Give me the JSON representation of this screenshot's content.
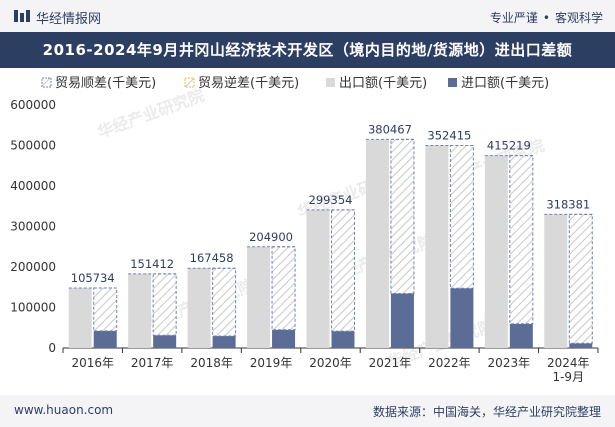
{
  "header": {
    "brand": "华经情报网",
    "slogan_left": "专业严谨",
    "slogan_sep": "•",
    "slogan_right": "客观科学"
  },
  "watermark": "华经产业研究院",
  "footer": {
    "site": "www.huaon.com",
    "source": "数据来源：中国海关，华经产业研究院整理"
  },
  "colors": {
    "header_bg": "#2d3e63",
    "export": "#d9d9d9",
    "import": "#5b6d96",
    "surplus_stroke": "#6d84b4",
    "deficit_stroke": "#f0c33c"
  },
  "chart_data": {
    "type": "bar",
    "title": "2016-2024年9月井冈山经济技术开发区（境内目的地/货源地）进出口差额",
    "categories": [
      "2016年",
      "2017年",
      "2018年",
      "2019年",
      "2020年",
      "2021年",
      "2022年",
      "2023年",
      "2024年\n1-9月"
    ],
    "series": [
      {
        "name": "贸易顺差(千美元)",
        "values": [
          105734,
          151412,
          167458,
          204900,
          299354,
          380467,
          352415,
          415219,
          318381
        ]
      },
      {
        "name": "贸易逆差(千美元)",
        "values": [
          0,
          0,
          0,
          0,
          0,
          0,
          0,
          0,
          0
        ]
      },
      {
        "name": "出口额(千美元)",
        "values": [
          148000,
          183000,
          197000,
          250000,
          341000,
          515000,
          500000,
          475000,
          330000
        ]
      },
      {
        "name": "进口额(千美元)",
        "values": [
          42266,
          31588,
          29542,
          45100,
          41646,
          134533,
          147585,
          59781,
          11619
        ]
      }
    ],
    "data_labels": [
      "105734",
      "151412",
      "167458",
      "204900",
      "299354",
      "380467",
      "352415",
      "415219",
      "318381"
    ],
    "y_ticks": [
      "0",
      "100000",
      "200000",
      "300000",
      "400000",
      "500000",
      "600000"
    ],
    "ylim": [
      0,
      600000
    ],
    "legend_position": "top-left"
  }
}
